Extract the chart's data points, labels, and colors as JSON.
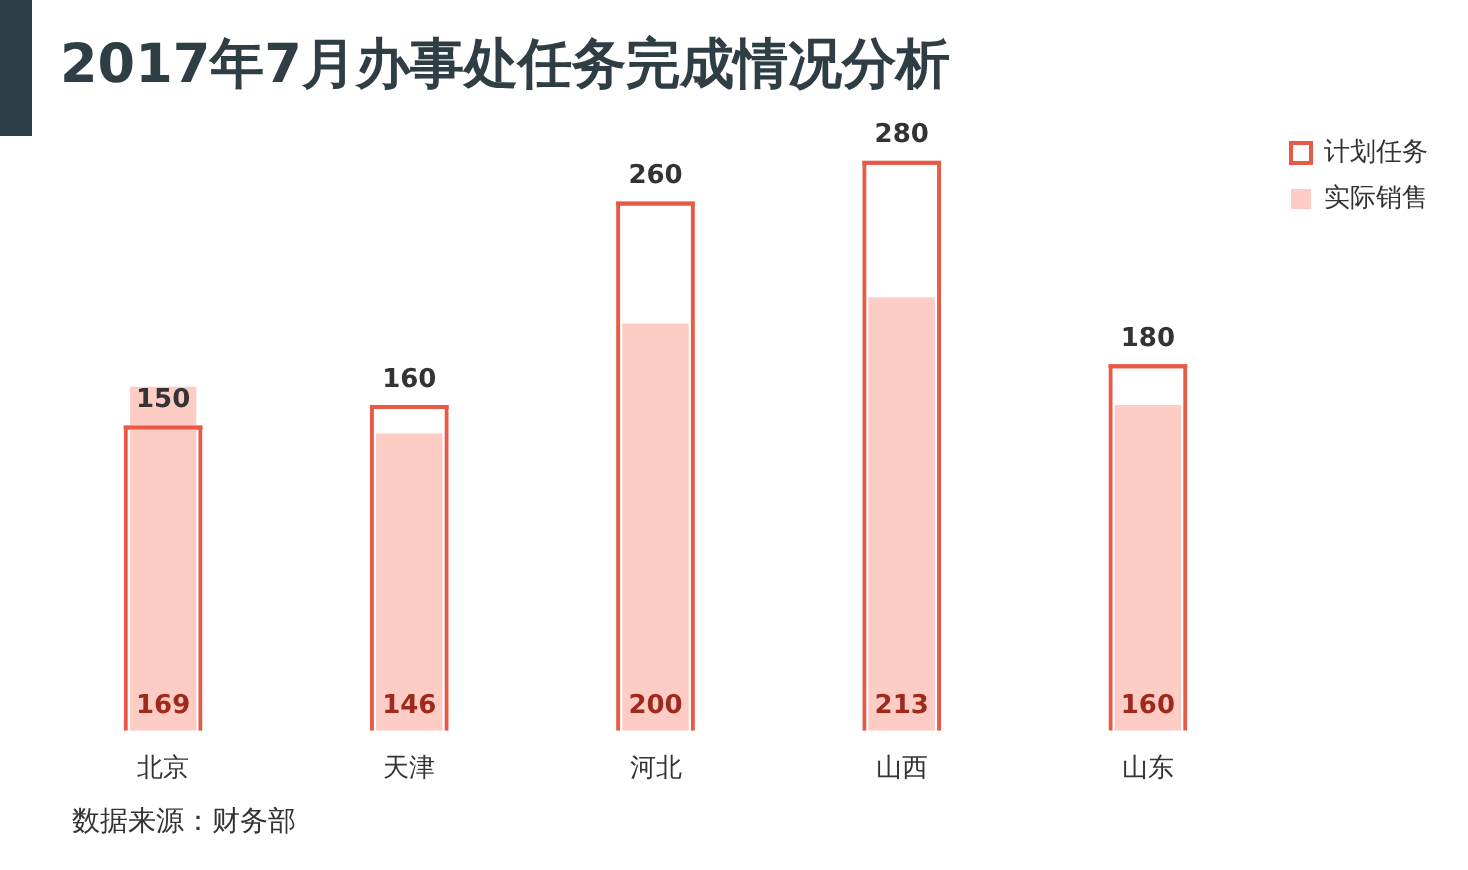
{
  "chart_data": {
    "type": "bar",
    "title": "2017年7月办事处任务完成情况分析",
    "categories": [
      "北京",
      "天津",
      "河北",
      "山西",
      "山东"
    ],
    "series": [
      {
        "name": "计划任务",
        "color": "#e85a46",
        "values": [
          150,
          160,
          260,
          280,
          180
        ]
      },
      {
        "name": "实际销售",
        "color": "#fdccc5",
        "values": [
          169,
          146,
          200,
          213,
          160
        ]
      }
    ],
    "data_labels": true,
    "legend": "top right",
    "grid": false,
    "annotations": [
      "数据来源：财务部"
    ]
  }
}
